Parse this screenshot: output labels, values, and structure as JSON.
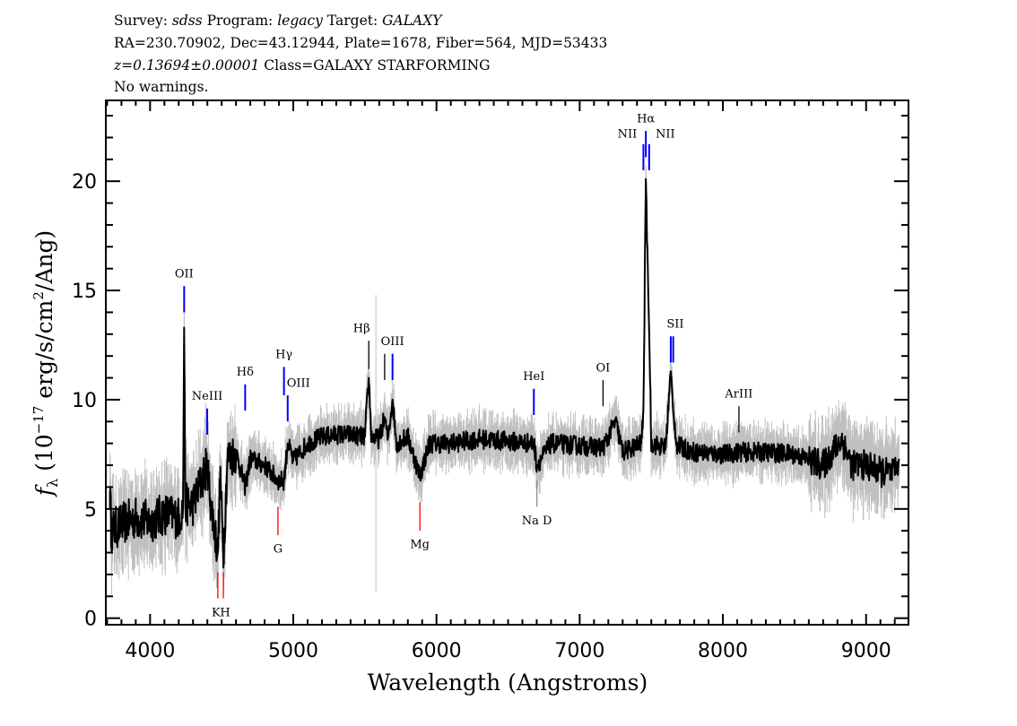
{
  "header": {
    "survey_label": "Survey:",
    "survey": "sdss",
    "program_label": "Program:",
    "program": "legacy",
    "target_label": "Target:",
    "target": "GALAXY",
    "line2": "RA=230.70902, Dec=43.12944, Plate=1678, Fiber=564, MJD=53433",
    "redshift": "z=0.13694±0.00001",
    "class": "Class=GALAXY STARFORMING",
    "warnings": "No warnings."
  },
  "colors": {
    "flux": "#000000",
    "error": "#c0c0c0",
    "emission": "#0000ff",
    "absorption": "#ff0000",
    "neutral": "#000000",
    "sky": "#909090"
  },
  "chart_data": {
    "type": "line",
    "xlabel": "Wavelength (Angstroms)",
    "ylabel": {
      "base": "f",
      "sub": "λ",
      "units_pre": " (10",
      "exp": "−17",
      "units_mid": " erg/s/cm",
      "exp2": "2",
      "units_post": "/Ang)"
    },
    "xlim": [
      3691,
      9296
    ],
    "ylim": [
      -0.3,
      23.7
    ],
    "xticks": [
      4000,
      5000,
      6000,
      7000,
      8000,
      9000
    ],
    "xtick_labels": [
      "4000",
      "5000",
      "6000",
      "7000",
      "8000",
      "9000"
    ],
    "yticks": [
      0,
      5,
      10,
      15,
      20
    ],
    "ytick_labels": [
      "0",
      "5",
      "10",
      "15",
      "20"
    ],
    "grid": false,
    "series": [
      {
        "role": "flux",
        "points": [
          [
            3720,
            5.8
          ],
          [
            3730,
            4.0
          ],
          [
            3800,
            4.3
          ],
          [
            3900,
            4.6
          ],
          [
            4000,
            4.4
          ],
          [
            4100,
            4.8
          ],
          [
            4200,
            4.6
          ],
          [
            4230,
            5.0
          ],
          [
            4238,
            13.3
          ],
          [
            4246,
            5.2
          ],
          [
            4300,
            5.2
          ],
          [
            4399,
            7.0
          ],
          [
            4420,
            5.5
          ],
          [
            4473,
            3.0
          ],
          [
            4490,
            6.5
          ],
          [
            4512,
            2.9
          ],
          [
            4540,
            7.3
          ],
          [
            4600,
            7.6
          ],
          [
            4664,
            6.0
          ],
          [
            4700,
            7.3
          ],
          [
            4800,
            7.0
          ],
          [
            4893,
            6.3
          ],
          [
            4935,
            6.3
          ],
          [
            4961,
            8.0
          ],
          [
            5000,
            7.2
          ],
          [
            5100,
            8.0
          ],
          [
            5200,
            8.3
          ],
          [
            5300,
            8.4
          ],
          [
            5400,
            8.4
          ],
          [
            5500,
            8.3
          ],
          [
            5527,
            11.0
          ],
          [
            5545,
            8.3
          ],
          [
            5600,
            8.2
          ],
          [
            5638,
            9.2
          ],
          [
            5660,
            8.2
          ],
          [
            5693,
            10.0
          ],
          [
            5720,
            8.0
          ],
          [
            5800,
            8.3
          ],
          [
            5884,
            6.5
          ],
          [
            5950,
            8.0
          ],
          [
            6100,
            8.0
          ],
          [
            6300,
            8.2
          ],
          [
            6500,
            8.1
          ],
          [
            6680,
            8.0
          ],
          [
            6701,
            7.0
          ],
          [
            6800,
            8.0
          ],
          [
            7000,
            7.9
          ],
          [
            7163,
            7.8
          ],
          [
            7250,
            9.0
          ],
          [
            7300,
            7.6
          ],
          [
            7430,
            8.0
          ],
          [
            7445,
            9.5
          ],
          [
            7462,
            20.1
          ],
          [
            7485,
            13.2
          ],
          [
            7500,
            8.0
          ],
          [
            7600,
            7.8
          ],
          [
            7636,
            11.3
          ],
          [
            7653,
            9.5
          ],
          [
            7680,
            7.9
          ],
          [
            7800,
            7.6
          ],
          [
            8000,
            7.5
          ],
          [
            8112,
            7.6
          ],
          [
            8300,
            7.6
          ],
          [
            8500,
            7.5
          ],
          [
            8700,
            7.0
          ],
          [
            8830,
            8.2
          ],
          [
            8900,
            7.0
          ],
          [
            9000,
            7.0
          ],
          [
            9100,
            6.7
          ],
          [
            9200,
            6.6
          ],
          [
            9230,
            7.3
          ]
        ]
      }
    ],
    "annotations": [
      {
        "label": "OII",
        "wavelength": 4238,
        "kind": "emission",
        "y_from": 14.0,
        "y_to": 15.2,
        "label_y": 15.6
      },
      {
        "label": "NeIII",
        "wavelength": 4399,
        "kind": "emission",
        "y_from": 8.4,
        "y_to": 9.6,
        "label_y": 10.0
      },
      {
        "label": "Hδ",
        "wavelength": 4664,
        "kind": "emission",
        "y_from": 9.5,
        "y_to": 10.7,
        "label_y": 11.1
      },
      {
        "label": "Hγ",
        "wavelength": 4935,
        "kind": "emission",
        "y_from": 10.2,
        "y_to": 11.5,
        "label_y": 11.9
      },
      {
        "label": "OIII",
        "wavelength": 4961,
        "kind": "emission",
        "y_from": 9.0,
        "y_to": 10.2,
        "label_y": 10.6,
        "label_offset": 12
      },
      {
        "label": "Hβ",
        "wavelength": 5527,
        "kind": "neutral",
        "y_from": 11.4,
        "y_to": 12.7,
        "label_y": 13.1,
        "label_offset": -8
      },
      {
        "label": "",
        "wavelength": 5638,
        "kind": "neutral",
        "y_from": 10.9,
        "y_to": 12.1
      },
      {
        "label": "OIII",
        "wavelength": 5693,
        "kind": "emission",
        "y_from": 10.9,
        "y_to": 12.1,
        "label_y": 12.5
      },
      {
        "label": "HeI",
        "wavelength": 6680,
        "kind": "emission",
        "y_from": 9.3,
        "y_to": 10.5,
        "label_y": 10.9
      },
      {
        "label": "OI",
        "wavelength": 7163,
        "kind": "neutral",
        "y_from": 9.7,
        "y_to": 10.9,
        "label_y": 11.3
      },
      {
        "label": "NII",
        "wavelength": 7445,
        "kind": "emission",
        "y_from": 20.5,
        "y_to": 21.7,
        "label_y": 22.0,
        "label_offset": -18
      },
      {
        "label": "Hα",
        "wavelength": 7462,
        "kind": "emission",
        "y_from": 21.1,
        "y_to": 22.3,
        "label_y": 22.7
      },
      {
        "label": "NII",
        "wavelength": 7485,
        "kind": "emission",
        "y_from": 20.5,
        "y_to": 21.7,
        "label_y": 22.0,
        "label_offset": 18
      },
      {
        "label": "SII",
        "wavelength": 7636,
        "kind": "emission",
        "y_from": 11.7,
        "y_to": 12.9,
        "label_y": 13.3,
        "label_offset": 5
      },
      {
        "label": "",
        "wavelength": 7653,
        "kind": "emission",
        "y_from": 11.7,
        "y_to": 12.9
      },
      {
        "label": "ArIII",
        "wavelength": 8112,
        "kind": "neutral",
        "y_from": 8.5,
        "y_to": 9.7,
        "label_y": 10.1
      },
      {
        "label": "K",
        "wavelength": 4473,
        "kind": "absorption",
        "y_from": 0.9,
        "y_to": 2.1,
        "label_y": 0.1,
        "label_offset": -2
      },
      {
        "label": "H",
        "wavelength": 4512,
        "kind": "absorption",
        "y_from": 0.9,
        "y_to": 2.1,
        "label_y": 0.1,
        "label_offset": 2
      },
      {
        "label": "G",
        "wavelength": 4893,
        "kind": "absorption",
        "y_from": 3.8,
        "y_to": 5.1,
        "label_y": 3.0
      },
      {
        "label": "Mg",
        "wavelength": 5884,
        "kind": "absorption",
        "y_from": 4.0,
        "y_to": 5.3,
        "label_y": 3.2
      },
      {
        "label": "Na  D",
        "wavelength": 6701,
        "kind": "sky",
        "y_from": 5.1,
        "y_to": 6.3,
        "label_y": 4.3
      }
    ]
  }
}
